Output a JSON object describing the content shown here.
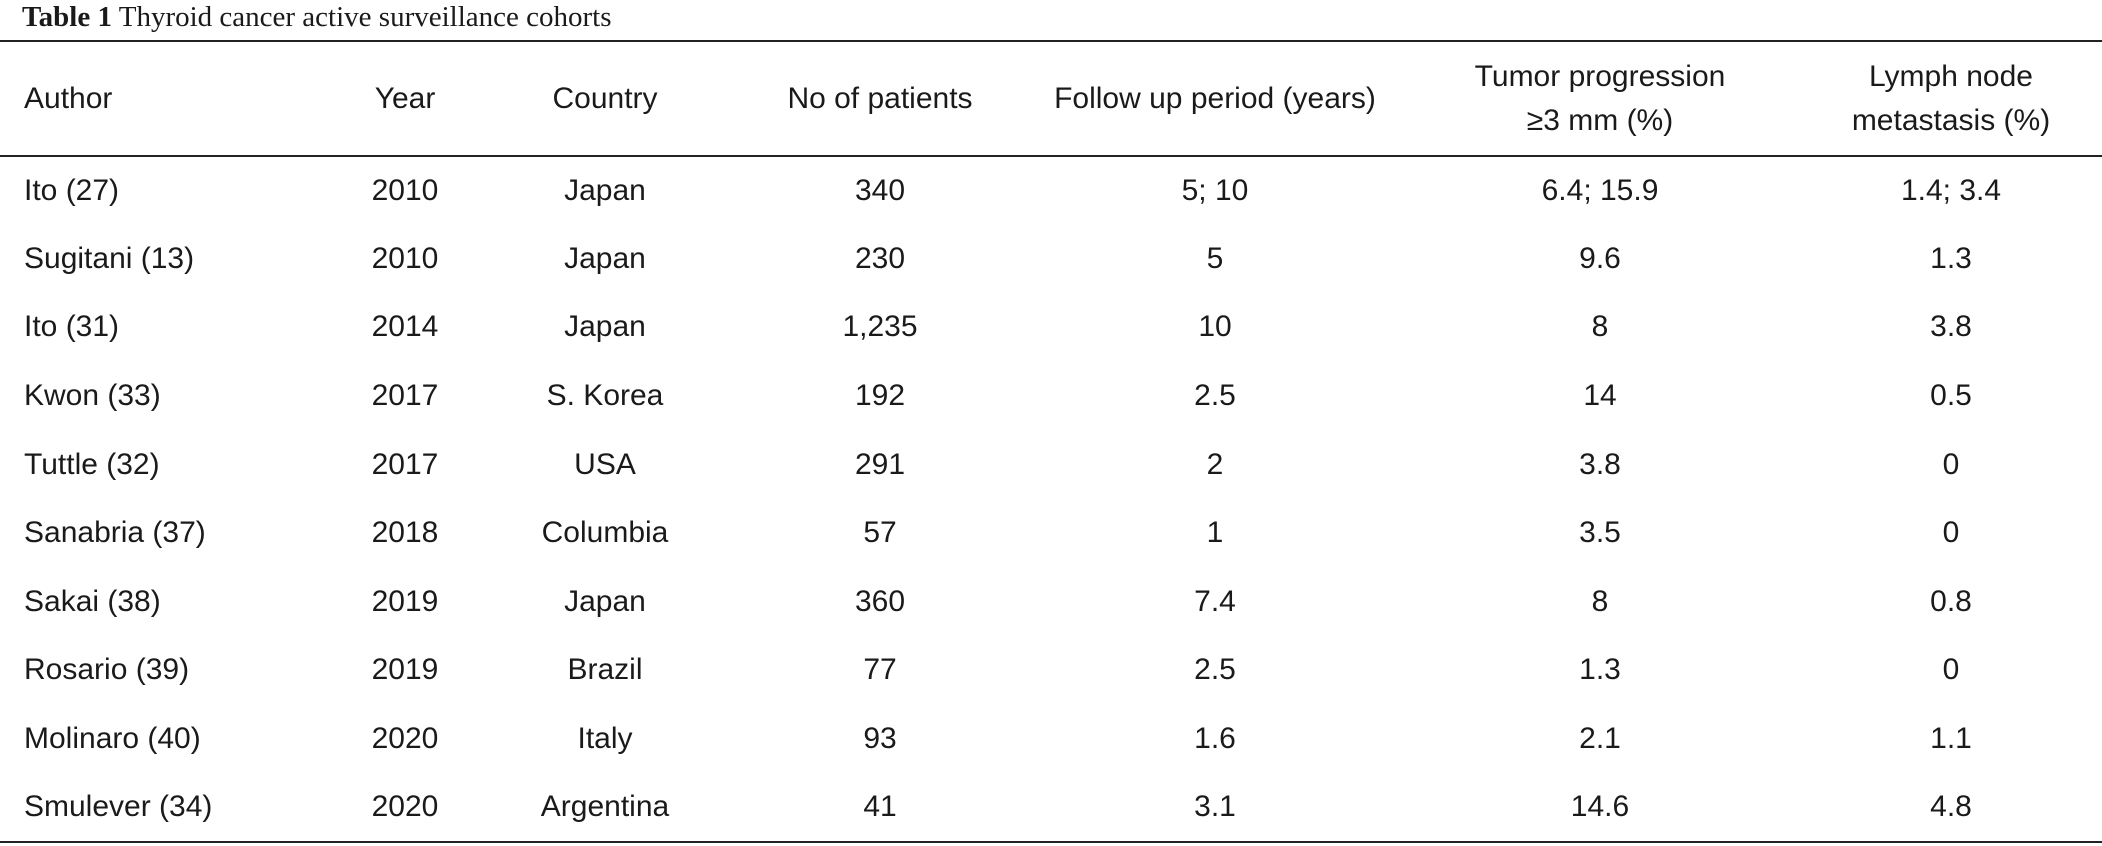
{
  "caption": {
    "label": "Table 1",
    "title": "Thyroid cancer active surveillance cohorts"
  },
  "headers": [
    "Author",
    "Year",
    "Country",
    "No of patients",
    "Follow up period (years)",
    [
      "Tumor progression",
      "≥3 mm (%)"
    ],
    [
      "Lymph node",
      "metastasis (%)"
    ]
  ],
  "rows": [
    [
      "Ito (27)",
      "2010",
      "Japan",
      "340",
      "5; 10",
      "6.4; 15.9",
      "1.4; 3.4"
    ],
    [
      "Sugitani (13)",
      "2010",
      "Japan",
      "230",
      "5",
      "9.6",
      "1.3"
    ],
    [
      "Ito (31)",
      "2014",
      "Japan",
      "1,235",
      "10",
      "8",
      "3.8"
    ],
    [
      "Kwon (33)",
      "2017",
      "S. Korea",
      "192",
      "2.5",
      "14",
      "0.5"
    ],
    [
      "Tuttle (32)",
      "2017",
      "USA",
      "291",
      "2",
      "3.8",
      "0"
    ],
    [
      "Sanabria (37)",
      "2018",
      "Columbia",
      "57",
      "1",
      "3.5",
      "0"
    ],
    [
      "Sakai (38)",
      "2019",
      "Japan",
      "360",
      "7.4",
      "8",
      "0.8"
    ],
    [
      "Rosario (39)",
      "2019",
      "Brazil",
      "77",
      "2.5",
      "1.3",
      "0"
    ],
    [
      "Molinaro (40)",
      "2020",
      "Italy",
      "93",
      "1.6",
      "2.1",
      "1.1"
    ],
    [
      "Smulever (34)",
      "2020",
      "Argentina",
      "41",
      "3.1",
      "14.6",
      "4.8"
    ]
  ]
}
